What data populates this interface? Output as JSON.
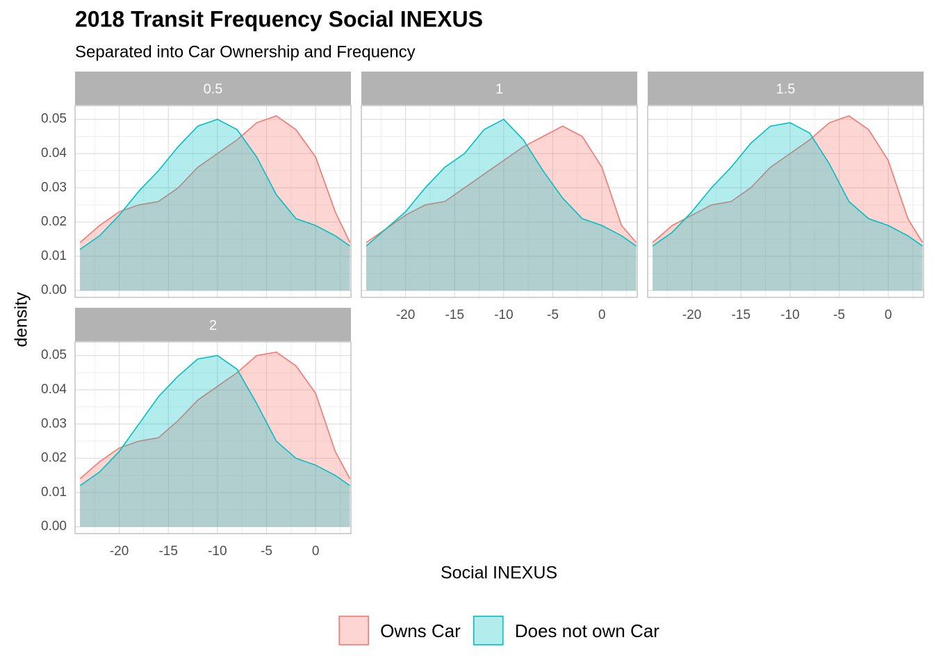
{
  "title": "2018 Transit Frequency Social INEXUS",
  "subtitle": "Separated into Car Ownership and Frequency",
  "x_label": "Social INEXUS",
  "y_label": "density",
  "legend_position": "bottom",
  "chart_data": [
    {
      "type": "area",
      "title": "0.5",
      "x": [
        -24,
        -22,
        -20,
        -18,
        -16,
        -14,
        -12,
        -10,
        -8,
        -6,
        -4,
        -2,
        0,
        2,
        3.5
      ],
      "series": [
        {
          "name": "Owns Car",
          "color": "#F8766D",
          "values": [
            0.014,
            0.019,
            0.023,
            0.025,
            0.026,
            0.03,
            0.036,
            0.04,
            0.044,
            0.049,
            0.051,
            0.047,
            0.039,
            0.023,
            0.014
          ]
        },
        {
          "name": "Does not own Car",
          "color": "#00BFC4",
          "values": [
            0.012,
            0.016,
            0.022,
            0.029,
            0.035,
            0.042,
            0.048,
            0.05,
            0.047,
            0.039,
            0.028,
            0.021,
            0.019,
            0.016,
            0.013
          ]
        }
      ],
      "xlim": [
        -24.5,
        3.6
      ],
      "ylim": [
        -0.002,
        0.054
      ],
      "xticks": [
        -20,
        -15,
        -10,
        -5,
        0
      ],
      "yticks": [
        {
          "value": 0,
          "label": "0.00"
        },
        0.01,
        0.02,
        0.03,
        0.04,
        0.05
      ],
      "grid": true
    },
    {
      "type": "area",
      "title": "1",
      "x": [
        -24,
        -22,
        -20,
        -18,
        -16,
        -14,
        -12,
        -10,
        -8,
        -6,
        -4,
        -2,
        0,
        2,
        3.5
      ],
      "series": [
        {
          "name": "Owns Car",
          "color": "#F8766D",
          "values": [
            0.014,
            0.018,
            0.022,
            0.025,
            0.026,
            0.03,
            0.034,
            0.038,
            0.042,
            0.045,
            0.048,
            0.045,
            0.036,
            0.019,
            0.014
          ]
        },
        {
          "name": "Does not own Car",
          "color": "#00BFC4",
          "values": [
            0.013,
            0.018,
            0.023,
            0.03,
            0.036,
            0.04,
            0.047,
            0.05,
            0.044,
            0.035,
            0.027,
            0.021,
            0.019,
            0.016,
            0.013
          ]
        }
      ],
      "xlim": [
        -24.5,
        3.6
      ],
      "ylim": [
        -0.002,
        0.054
      ],
      "xticks": [
        -20,
        -15,
        -10,
        -5,
        0
      ],
      "yticks": [
        {
          "value": 0,
          "label": "0.00"
        },
        0.01,
        0.02,
        0.03,
        0.04,
        0.05
      ],
      "grid": true
    },
    {
      "type": "area",
      "title": "1.5",
      "x": [
        -24,
        -22,
        -20,
        -18,
        -16,
        -14,
        -12,
        -10,
        -8,
        -6,
        -4,
        -2,
        0,
        2,
        3.5
      ],
      "series": [
        {
          "name": "Owns Car",
          "color": "#F8766D",
          "values": [
            0.014,
            0.019,
            0.022,
            0.025,
            0.026,
            0.03,
            0.036,
            0.04,
            0.044,
            0.049,
            0.051,
            0.047,
            0.038,
            0.021,
            0.014
          ]
        },
        {
          "name": "Does not own Car",
          "color": "#00BFC4",
          "values": [
            0.013,
            0.017,
            0.023,
            0.03,
            0.036,
            0.043,
            0.048,
            0.049,
            0.046,
            0.037,
            0.026,
            0.021,
            0.019,
            0.016,
            0.013
          ]
        }
      ],
      "xlim": [
        -24.5,
        3.6
      ],
      "ylim": [
        -0.002,
        0.054
      ],
      "xticks": [
        -20,
        -15,
        -10,
        -5,
        0
      ],
      "yticks": [
        {
          "value": 0,
          "label": "0.00"
        },
        0.01,
        0.02,
        0.03,
        0.04,
        0.05
      ],
      "grid": true
    },
    {
      "type": "area",
      "title": "2",
      "x": [
        -24,
        -22,
        -20,
        -18,
        -16,
        -14,
        -12,
        -10,
        -8,
        -6,
        -4,
        -2,
        0,
        2,
        3.5
      ],
      "series": [
        {
          "name": "Owns Car",
          "color": "#F8766D",
          "values": [
            0.014,
            0.019,
            0.023,
            0.025,
            0.026,
            0.031,
            0.037,
            0.041,
            0.045,
            0.05,
            0.051,
            0.047,
            0.039,
            0.022,
            0.014
          ]
        },
        {
          "name": "Does not own Car",
          "color": "#00BFC4",
          "values": [
            0.012,
            0.016,
            0.022,
            0.03,
            0.038,
            0.044,
            0.049,
            0.05,
            0.046,
            0.036,
            0.025,
            0.02,
            0.018,
            0.015,
            0.012
          ]
        }
      ],
      "xlim": [
        -24.5,
        3.6
      ],
      "ylim": [
        -0.002,
        0.054
      ],
      "xticks": [
        -20,
        -15,
        -10,
        -5,
        0
      ],
      "yticks": [
        {
          "value": 0,
          "label": "0.00"
        },
        0.01,
        0.02,
        0.03,
        0.04,
        0.05
      ],
      "grid": true
    }
  ]
}
